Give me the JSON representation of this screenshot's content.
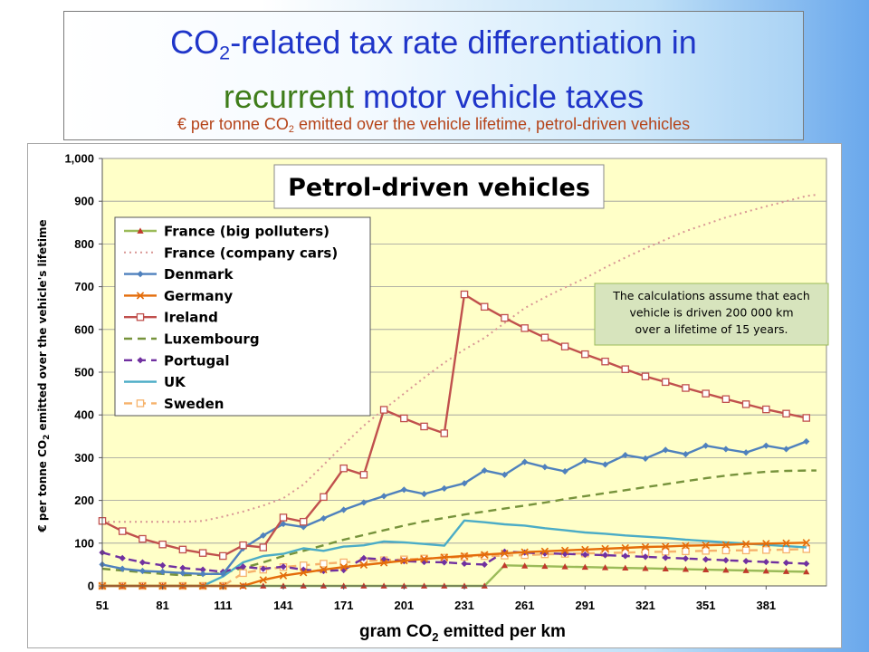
{
  "slide": {
    "title_line1_pre": "CO",
    "title_sub": "2",
    "title_line1_post": "-related tax rate differentiation in",
    "title_line2_green": "recurrent",
    "title_line2_rest": " motor vehicle taxes",
    "subtitle_pre": "€ per tonne CO",
    "subtitle_sub": "2",
    "subtitle_post": " emitted over the vehicle lifetime, petrol-driven vehicles"
  },
  "chart_data": {
    "type": "line",
    "title": "Petrol-driven vehicles",
    "xlabel_pre": "gram CO",
    "xlabel_sub": "2",
    "xlabel_post": " emitted per km",
    "ylabel_pre": "€ per tonne CO",
    "ylabel_sub": "2",
    "ylabel_post": " emitted over the vehicle's lifetime",
    "xlim": [
      51,
      411
    ],
    "ylim": [
      0,
      1000
    ],
    "x_ticks": [
      51,
      81,
      111,
      141,
      171,
      201,
      231,
      261,
      291,
      321,
      351,
      381
    ],
    "x_tick_labels": [
      "51",
      "81",
      "111",
      "141",
      "171",
      "201",
      "231",
      "261",
      "291",
      "321",
      "351",
      "381"
    ],
    "y_ticks": [
      0,
      100,
      200,
      300,
      400,
      500,
      600,
      700,
      800,
      900,
      1000
    ],
    "y_tick_labels": [
      "0",
      "100",
      "200",
      "300",
      "400",
      "500",
      "600",
      "700",
      "800",
      "900",
      "1,000"
    ],
    "grid": "horizontal",
    "legend_position": "top-left",
    "annotation": "The calculations assume that each vehicle is driven 200 000 km over a lifetime of 15 years.",
    "plot_background": "#ffffc8",
    "series": [
      {
        "name": "France (big polluters)",
        "color": "#9bbb59",
        "style": "solid",
        "marker": "triangle",
        "marker_color": "#c0392b",
        "x": [
          51,
          61,
          71,
          81,
          91,
          101,
          111,
          121,
          131,
          141,
          151,
          161,
          171,
          181,
          191,
          201,
          211,
          221,
          231,
          241,
          251,
          261,
          271,
          281,
          291,
          301,
          311,
          321,
          331,
          341,
          351,
          361,
          371,
          381,
          391,
          401
        ],
        "y": [
          0,
          0,
          0,
          0,
          0,
          0,
          0,
          0,
          0,
          0,
          0,
          0,
          0,
          0,
          0,
          0,
          0,
          0,
          0,
          0,
          48,
          47,
          46,
          45,
          44,
          43,
          42,
          41,
          40,
          39,
          38,
          37,
          36,
          35,
          34,
          33
        ]
      },
      {
        "name": "France (company cars)",
        "color": "#d99795",
        "style": "dotted",
        "marker": "none",
        "x": [
          51,
          61,
          71,
          81,
          91,
          101,
          111,
          121,
          131,
          141,
          151,
          161,
          171,
          181,
          191,
          201,
          211,
          221,
          231,
          241,
          251,
          261,
          271,
          281,
          291,
          301,
          311,
          321,
          331,
          341,
          351,
          361,
          371,
          381,
          391,
          401,
          406
        ],
        "y": [
          150,
          150,
          150,
          150,
          150,
          152,
          162,
          174,
          188,
          205,
          237,
          283,
          330,
          375,
          413,
          450,
          487,
          522,
          553,
          580,
          615,
          650,
          675,
          698,
          720,
          745,
          768,
          790,
          810,
          830,
          846,
          862,
          875,
          888,
          900,
          912,
          915
        ]
      },
      {
        "name": "Denmark",
        "color": "#4f81bd",
        "style": "solid",
        "marker": "diamond",
        "marker_color": "#4f81bd",
        "x": [
          51,
          61,
          71,
          81,
          91,
          101,
          111,
          121,
          131,
          141,
          151,
          161,
          171,
          181,
          191,
          201,
          211,
          221,
          231,
          241,
          251,
          261,
          271,
          281,
          291,
          301,
          311,
          321,
          331,
          341,
          351,
          361,
          371,
          381,
          391,
          401
        ],
        "y": [
          50,
          40,
          35,
          33,
          30,
          28,
          28,
          88,
          118,
          145,
          138,
          158,
          178,
          195,
          210,
          225,
          215,
          228,
          240,
          270,
          260,
          290,
          278,
          268,
          293,
          284,
          306,
          298,
          318,
          308,
          328,
          320,
          312,
          328,
          320,
          338
        ]
      },
      {
        "name": "Germany",
        "color": "#e46c0a",
        "style": "solid",
        "marker": "x",
        "marker_color": "#e46c0a",
        "x": [
          51,
          61,
          71,
          81,
          91,
          101,
          111,
          121,
          131,
          141,
          151,
          161,
          171,
          181,
          191,
          201,
          211,
          221,
          231,
          241,
          251,
          261,
          271,
          281,
          291,
          301,
          311,
          321,
          331,
          341,
          351,
          361,
          371,
          381,
          391,
          401
        ],
        "y": [
          0,
          0,
          0,
          0,
          0,
          0,
          0,
          0,
          14,
          24,
          31,
          38,
          44,
          49,
          54,
          59,
          63,
          67,
          70,
          73,
          76,
          79,
          81,
          83,
          85,
          87,
          89,
          91,
          92,
          94,
          95,
          96,
          98,
          99,
          100,
          101
        ]
      },
      {
        "name": "Ireland",
        "color": "#c0504d",
        "style": "solid",
        "marker": "square",
        "marker_color": "#c0504d",
        "x": [
          51,
          61,
          71,
          81,
          91,
          101,
          111,
          121,
          131,
          141,
          151,
          161,
          171,
          181,
          191,
          201,
          211,
          221,
          231,
          241,
          251,
          261,
          271,
          281,
          291,
          301,
          311,
          321,
          331,
          341,
          351,
          361,
          371,
          381,
          391,
          401
        ],
        "y": [
          152,
          128,
          110,
          97,
          85,
          77,
          70,
          95,
          90,
          160,
          150,
          208,
          275,
          260,
          412,
          392,
          373,
          357,
          682,
          653,
          627,
          603,
          581,
          560,
          542,
          525,
          507,
          490,
          477,
          463,
          450,
          437,
          425,
          413,
          403,
          393
        ]
      },
      {
        "name": "Luxembourg",
        "color": "#77933c",
        "style": "dashed",
        "marker": "none",
        "x": [
          51,
          61,
          71,
          81,
          91,
          101,
          111,
          121,
          131,
          141,
          151,
          161,
          171,
          181,
          191,
          201,
          211,
          221,
          231,
          241,
          251,
          261,
          271,
          281,
          291,
          301,
          311,
          321,
          331,
          341,
          351,
          361,
          371,
          381,
          391,
          401,
          406
        ],
        "y": [
          40,
          36,
          32,
          28,
          25,
          26,
          30,
          42,
          55,
          70,
          82,
          95,
          108,
          119,
          130,
          141,
          151,
          159,
          167,
          174,
          181,
          188,
          195,
          203,
          210,
          217,
          224,
          231,
          238,
          245,
          252,
          258,
          263,
          267,
          269,
          270,
          270
        ]
      },
      {
        "name": "Portugal",
        "color": "#7030a0",
        "style": "dashed",
        "marker": "diamond",
        "marker_color": "#7030a0",
        "x": [
          51,
          61,
          71,
          81,
          91,
          101,
          111,
          121,
          131,
          141,
          151,
          161,
          171,
          181,
          191,
          201,
          211,
          221,
          231,
          241,
          251,
          261,
          271,
          281,
          291,
          301,
          311,
          321,
          331,
          341,
          351,
          361,
          371,
          381,
          391,
          401
        ],
        "y": [
          78,
          65,
          55,
          48,
          42,
          38,
          33,
          45,
          40,
          45,
          38,
          35,
          37,
          65,
          62,
          58,
          56,
          55,
          52,
          50,
          80,
          78,
          76,
          75,
          73,
          72,
          70,
          68,
          66,
          64,
          62,
          60,
          58,
          56,
          54,
          52
        ]
      },
      {
        "name": "UK",
        "color": "#4bacc6",
        "style": "solid",
        "marker": "none",
        "x": [
          51,
          61,
          71,
          81,
          91,
          101,
          111,
          121,
          131,
          141,
          151,
          161,
          171,
          181,
          191,
          201,
          211,
          221,
          231,
          241,
          251,
          261,
          271,
          281,
          291,
          301,
          311,
          321,
          331,
          341,
          351,
          361,
          371,
          381,
          391,
          401
        ],
        "y": [
          0,
          0,
          0,
          0,
          0,
          0,
          22,
          55,
          70,
          75,
          88,
          82,
          92,
          95,
          104,
          102,
          98,
          94,
          153,
          149,
          144,
          141,
          135,
          130,
          125,
          122,
          118,
          115,
          112,
          108,
          105,
          102,
          99,
          96,
          93,
          90
        ]
      },
      {
        "name": "Sweden",
        "color": "#f6b26b",
        "style": "dashed",
        "marker": "square",
        "marker_color": "#f6b26b",
        "x": [
          51,
          61,
          71,
          81,
          91,
          101,
          111,
          121,
          131,
          141,
          151,
          161,
          171,
          181,
          191,
          201,
          211,
          221,
          231,
          241,
          251,
          261,
          271,
          281,
          291,
          301,
          311,
          321,
          331,
          341,
          351,
          361,
          371,
          381,
          391,
          401
        ],
        "y": [
          0,
          0,
          0,
          0,
          0,
          0,
          0,
          30,
          38,
          44,
          48,
          52,
          55,
          58,
          60,
          62,
          64,
          66,
          68,
          70,
          71,
          72,
          74,
          75,
          76,
          77,
          78,
          79,
          80,
          81,
          82,
          83,
          83,
          84,
          85,
          86
        ]
      }
    ]
  }
}
